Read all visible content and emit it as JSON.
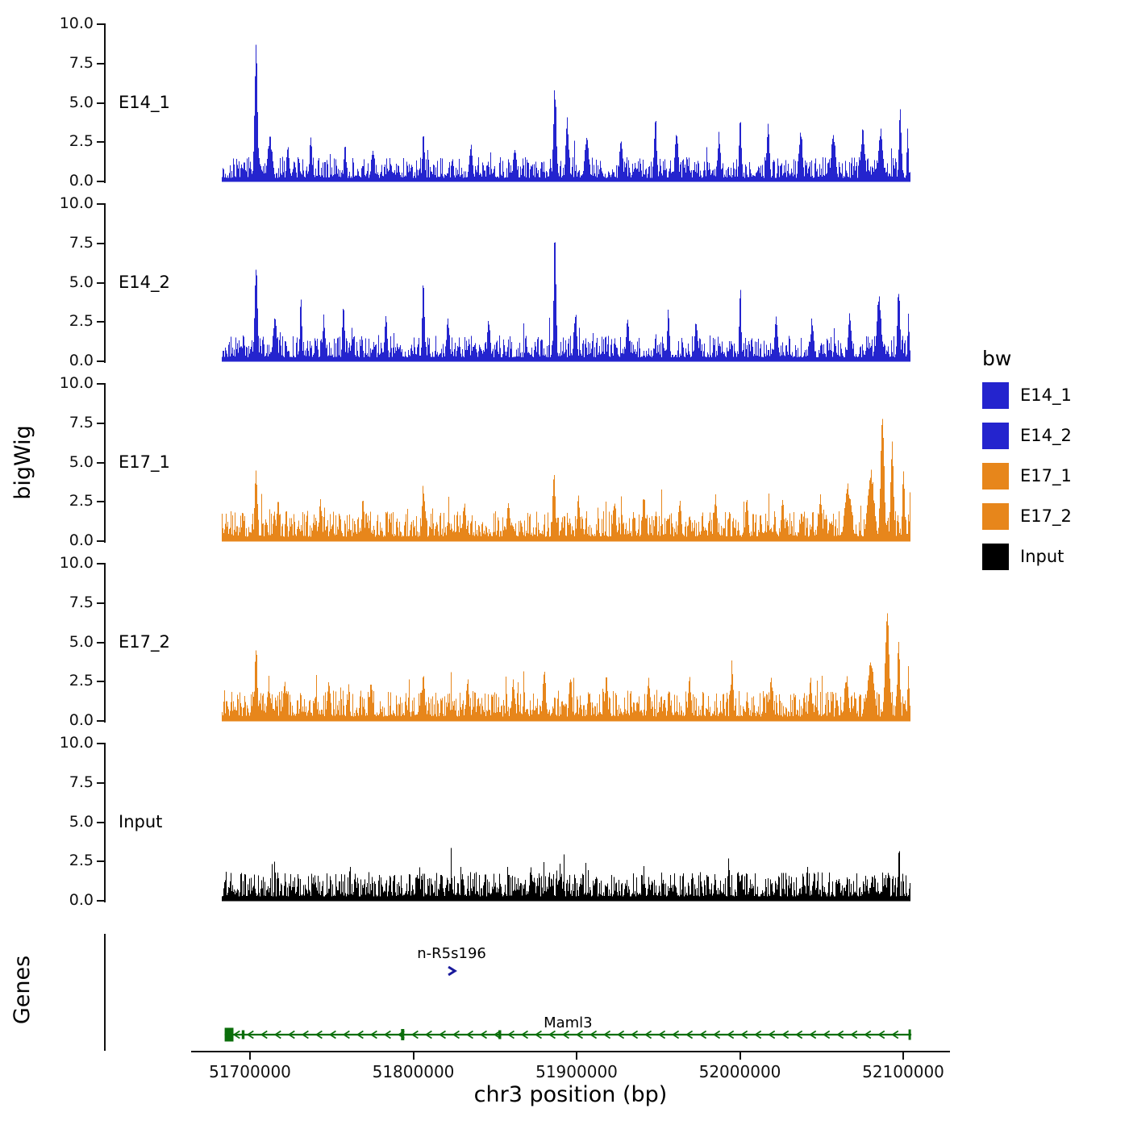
{
  "figure": {
    "y_axis_title": "bigWig",
    "genes_axis_title": "Genes",
    "x_axis_title": "chr3 position (bp)",
    "legend": {
      "title": "bw",
      "entries": [
        {
          "label": "E14_1",
          "color": "#2424CE"
        },
        {
          "label": "E14_2",
          "color": "#2424CE"
        },
        {
          "label": "E17_1",
          "color": "#E7861B"
        },
        {
          "label": "E17_2",
          "color": "#E7861B"
        },
        {
          "label": "Input",
          "color": "#000000"
        }
      ]
    }
  },
  "chart_data": {
    "type": "area",
    "title": "",
    "xlabel": "chr3 position (bp)",
    "ylabel": "bigWig",
    "chromosome": "chr3",
    "x_range_bp": [
      51683000,
      52104000
    ],
    "x_ticks": [
      51700000,
      51800000,
      51900000,
      52000000,
      52100000
    ],
    "x_tick_labels": [
      "51700000",
      "51800000",
      "51900000",
      "52000000",
      "52100000"
    ],
    "ylim": [
      0,
      10
    ],
    "y_ticks": [
      10.0,
      7.5,
      5.0,
      2.5,
      0.0
    ],
    "y_tick_labels": [
      "10.0",
      "7.5",
      "5.0",
      "2.5",
      "0.0"
    ],
    "grid": false,
    "legend_position": "right",
    "tracks": [
      {
        "name": "E14_1",
        "color": "#2424CE",
        "baseline": 0.85,
        "seed": 101,
        "peaks": [
          [
            51703500,
            9.0,
            900
          ],
          [
            51712000,
            3.0,
            1500
          ],
          [
            51723000,
            2.6,
            800
          ],
          [
            51737000,
            3.4,
            700
          ],
          [
            51758000,
            2.8,
            700
          ],
          [
            51775000,
            2.4,
            900
          ],
          [
            51806000,
            3.4,
            700
          ],
          [
            51835000,
            2.6,
            1000
          ],
          [
            51862000,
            2.5,
            1000
          ],
          [
            51886500,
            6.3,
            900
          ],
          [
            51894000,
            4.4,
            900
          ],
          [
            51906000,
            3.2,
            1200
          ],
          [
            51927000,
            2.8,
            1000
          ],
          [
            51948000,
            4.5,
            800
          ],
          [
            51961000,
            3.4,
            1000
          ],
          [
            51987000,
            3.2,
            900
          ],
          [
            52000000,
            4.0,
            800
          ],
          [
            52017000,
            3.9,
            900
          ],
          [
            52037000,
            3.5,
            1100
          ],
          [
            52057000,
            3.3,
            1300
          ],
          [
            52075000,
            3.4,
            1300
          ],
          [
            52086000,
            3.7,
            1300
          ],
          [
            52098000,
            4.7,
            800
          ],
          [
            52102500,
            3.7,
            500
          ]
        ]
      },
      {
        "name": "E14_2",
        "color": "#2424CE",
        "baseline": 0.9,
        "seed": 202,
        "peaks": [
          [
            51703500,
            6.4,
            900
          ],
          [
            51715000,
            3.0,
            1100
          ],
          [
            51731000,
            4.5,
            600
          ],
          [
            51745000,
            3.1,
            800
          ],
          [
            51757000,
            3.9,
            700
          ],
          [
            51783000,
            3.1,
            800
          ],
          [
            51806000,
            5.5,
            700
          ],
          [
            51821000,
            3.1,
            900
          ],
          [
            51846000,
            2.9,
            900
          ],
          [
            51886500,
            9.4,
            700
          ],
          [
            51899000,
            3.5,
            900
          ],
          [
            51931000,
            3.1,
            900
          ],
          [
            51956000,
            3.7,
            700
          ],
          [
            51973000,
            2.9,
            900
          ],
          [
            52000000,
            5.0,
            600
          ],
          [
            52022000,
            3.3,
            900
          ],
          [
            52044000,
            2.9,
            1000
          ],
          [
            52067000,
            3.1,
            1000
          ],
          [
            52085000,
            4.3,
            1400
          ],
          [
            52097000,
            5.3,
            800
          ],
          [
            52103000,
            3.5,
            500
          ]
        ]
      },
      {
        "name": "E17_1",
        "color": "#E7861B",
        "baseline": 1.05,
        "seed": 303,
        "peaks": [
          [
            51703500,
            5.1,
            800
          ],
          [
            51717000,
            2.7,
            900
          ],
          [
            51743000,
            2.7,
            900
          ],
          [
            51769000,
            2.9,
            800
          ],
          [
            51806000,
            3.9,
            800
          ],
          [
            51831000,
            2.7,
            900
          ],
          [
            51858000,
            2.9,
            900
          ],
          [
            51886000,
            4.9,
            800
          ],
          [
            51901000,
            3.1,
            900
          ],
          [
            51923000,
            2.9,
            900
          ],
          [
            51941000,
            3.3,
            800
          ],
          [
            51963000,
            2.9,
            900
          ],
          [
            51985000,
            3.1,
            800
          ],
          [
            52004000,
            3.3,
            800
          ],
          [
            52026000,
            2.9,
            900
          ],
          [
            52049000,
            3.1,
            1000
          ],
          [
            52066000,
            3.7,
            2000
          ],
          [
            52080000,
            4.7,
            2000
          ],
          [
            52087000,
            8.5,
            1100
          ],
          [
            52093000,
            6.7,
            900
          ],
          [
            52100000,
            4.9,
            700
          ],
          [
            52104000,
            3.7,
            400
          ]
        ]
      },
      {
        "name": "E17_2",
        "color": "#E7861B",
        "baseline": 1.05,
        "seed": 404,
        "peaks": [
          [
            51703500,
            5.3,
            800
          ],
          [
            51721000,
            2.7,
            900
          ],
          [
            51748000,
            2.9,
            900
          ],
          [
            51774000,
            2.7,
            900
          ],
          [
            51806000,
            3.5,
            800
          ],
          [
            51833000,
            2.9,
            900
          ],
          [
            51861000,
            2.7,
            900
          ],
          [
            51880000,
            3.7,
            900
          ],
          [
            51896000,
            3.1,
            900
          ],
          [
            51918000,
            3.1,
            800
          ],
          [
            51944000,
            2.9,
            900
          ],
          [
            51969000,
            2.9,
            900
          ],
          [
            51995000,
            4.1,
            700
          ],
          [
            52019000,
            2.9,
            900
          ],
          [
            52043000,
            2.9,
            900
          ],
          [
            52065000,
            3.1,
            1200
          ],
          [
            52080000,
            4.1,
            2000
          ],
          [
            52090000,
            7.1,
            1300
          ],
          [
            52097000,
            5.5,
            800
          ],
          [
            52103000,
            3.9,
            500
          ]
        ]
      },
      {
        "name": "Input",
        "color": "#000000",
        "baseline": 1.0,
        "seed": 505,
        "peaks": [
          [
            51715000,
            3.3,
            350
          ],
          [
            51761000,
            2.6,
            400
          ],
          [
            51823000,
            3.6,
            350
          ],
          [
            51872000,
            2.6,
            400
          ],
          [
            51941000,
            2.6,
            400
          ],
          [
            51993000,
            3.7,
            350
          ],
          [
            52041000,
            2.6,
            400
          ],
          [
            52097000,
            3.4,
            400
          ]
        ]
      }
    ],
    "genes": {
      "items": [
        {
          "name": "n-R5s196",
          "type": "arrow",
          "strand": "+",
          "pos_bp": 51823500,
          "color": "#1A1A9C"
        },
        {
          "name": "Maml3",
          "type": "gene",
          "strand": "-",
          "start_bp": 51684500,
          "end_bp": 52105000,
          "color": "#0B6E0B",
          "exons": [
            [
              51687200,
              5400,
              17
            ],
            [
              51695800,
              1700,
              11
            ],
            [
              51793500,
              2000,
              14
            ],
            [
              51853000,
              1700,
              11
            ],
            [
              52104000,
              1500,
              13
            ]
          ],
          "arrow_spacing_bp": 8400
        }
      ]
    }
  }
}
